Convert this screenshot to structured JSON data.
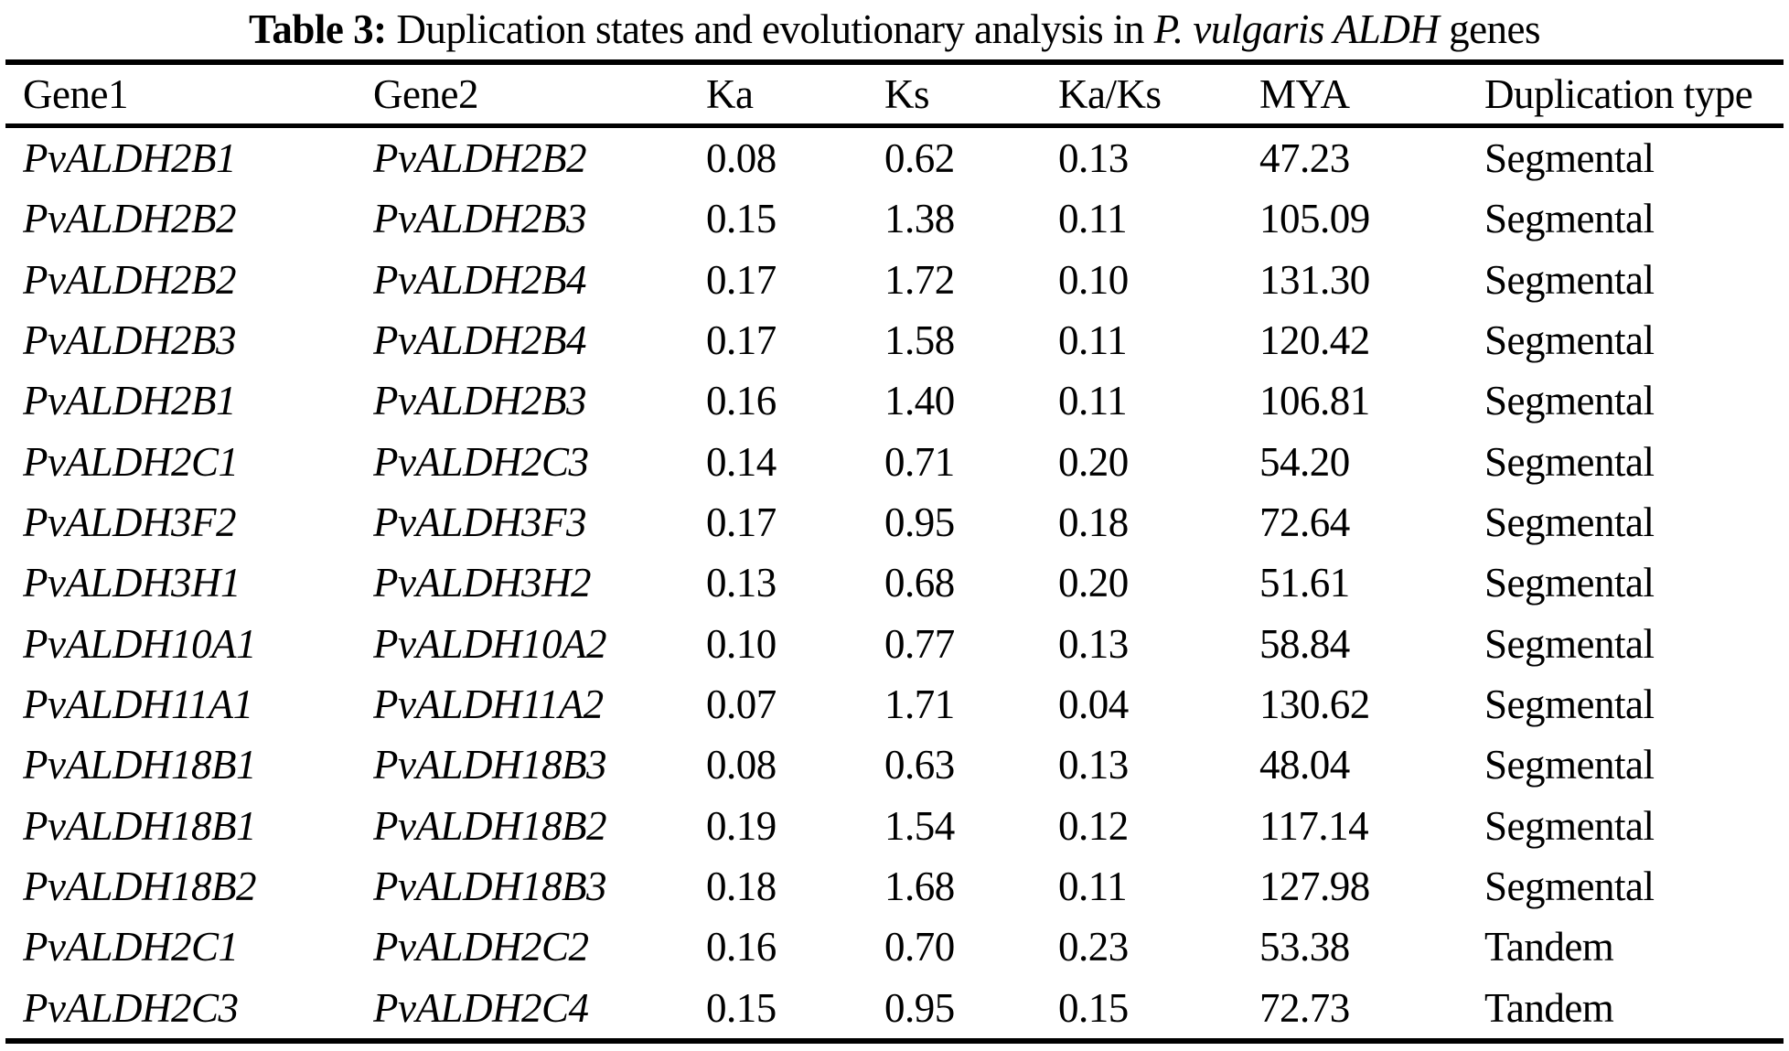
{
  "title": {
    "label": "Table 3:",
    "rest": " Duplication states and evolutionary analysis in ",
    "species": "P. vulgaris ALDH",
    "suffix": " genes"
  },
  "table": {
    "columns": [
      "Gene1",
      "Gene2",
      "Ka",
      "Ks",
      "Ka/Ks",
      "MYA",
      "Duplication type"
    ],
    "rows": [
      [
        "PvALDH2B1",
        "PvALDH2B2",
        "0.08",
        "0.62",
        "0.13",
        "47.23",
        "Segmental"
      ],
      [
        "PvALDH2B2",
        "PvALDH2B3",
        "0.15",
        "1.38",
        "0.11",
        "105.09",
        "Segmental"
      ],
      [
        "PvALDH2B2",
        "PvALDH2B4",
        "0.17",
        "1.72",
        "0.10",
        "131.30",
        "Segmental"
      ],
      [
        "PvALDH2B3",
        "PvALDH2B4",
        "0.17",
        "1.58",
        "0.11",
        "120.42",
        "Segmental"
      ],
      [
        "PvALDH2B1",
        "PvALDH2B3",
        "0.16",
        "1.40",
        "0.11",
        "106.81",
        "Segmental"
      ],
      [
        "PvALDH2C1",
        "PvALDH2C3",
        "0.14",
        "0.71",
        "0.20",
        "54.20",
        "Segmental"
      ],
      [
        "PvALDH3F2",
        "PvALDH3F3",
        "0.17",
        "0.95",
        "0.18",
        "72.64",
        "Segmental"
      ],
      [
        "PvALDH3H1",
        "PvALDH3H2",
        "0.13",
        "0.68",
        "0.20",
        "51.61",
        "Segmental"
      ],
      [
        "PvALDH10A1",
        "PvALDH10A2",
        "0.10",
        "0.77",
        "0.13",
        "58.84",
        "Segmental"
      ],
      [
        "PvALDH11A1",
        "PvALDH11A2",
        "0.07",
        "1.71",
        "0.04",
        "130.62",
        "Segmental"
      ],
      [
        "PvALDH18B1",
        "PvALDH18B3",
        "0.08",
        "0.63",
        "0.13",
        "48.04",
        "Segmental"
      ],
      [
        "PvALDH18B1",
        "PvALDH18B2",
        "0.19",
        "1.54",
        "0.12",
        "117.14",
        "Segmental"
      ],
      [
        "PvALDH18B2",
        "PvALDH18B3",
        "0.18",
        "1.68",
        "0.11",
        "127.98",
        "Segmental"
      ],
      [
        "PvALDH2C1",
        "PvALDH2C2",
        "0.16",
        "0.70",
        "0.23",
        "53.38",
        "Tandem"
      ],
      [
        "PvALDH2C3",
        "PvALDH2C4",
        "0.15",
        "0.95",
        "0.15",
        "72.73",
        "Tandem"
      ]
    ]
  },
  "colors": {
    "background": "#ffffff",
    "text": "#000000",
    "rule": "#000000"
  }
}
